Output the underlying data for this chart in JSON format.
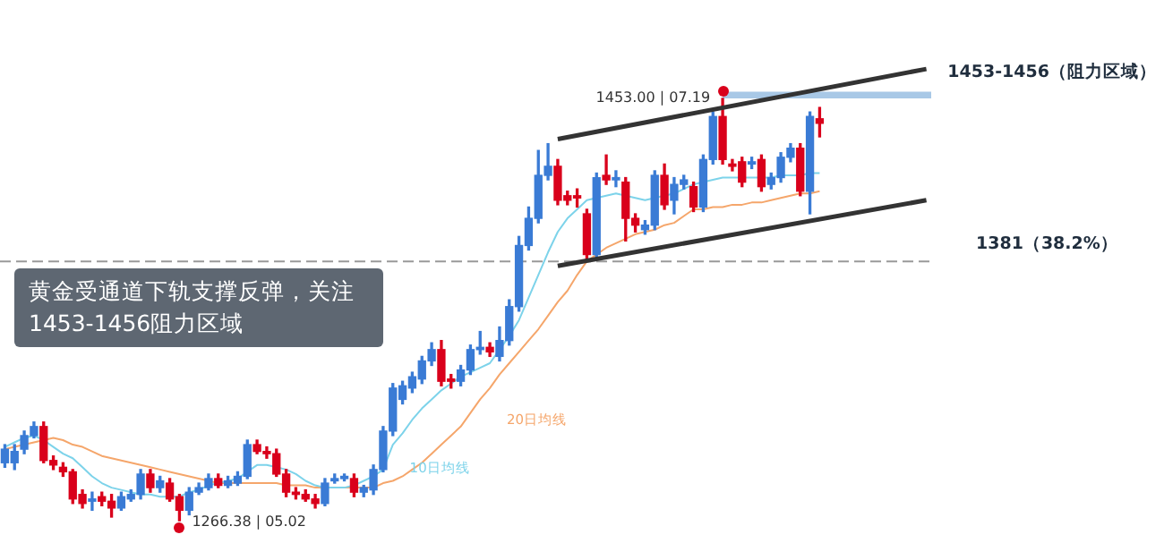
{
  "chart_data": {
    "type": "candlestick",
    "title": "黄金受通道下轨支撑反弹，关注1453-1456阻力区域",
    "categories": [
      null,
      null,
      null,
      null,
      null,
      null,
      null,
      null,
      null,
      null,
      null,
      null,
      null,
      null,
      null,
      null,
      null,
      null,
      null,
      null,
      null,
      null,
      null,
      null,
      null,
      null,
      null,
      null,
      null,
      null,
      null,
      null,
      null,
      null,
      null,
      null,
      null,
      null,
      null,
      null,
      null,
      null,
      null,
      null,
      null,
      null,
      null,
      null,
      null,
      null,
      null,
      null,
      null,
      null,
      null,
      null,
      null,
      null,
      null,
      null,
      null,
      null,
      null,
      null,
      null,
      null,
      null,
      null,
      null,
      null,
      null,
      null,
      null,
      null,
      null,
      null,
      null,
      null,
      null,
      null,
      null,
      null,
      null,
      null,
      null,
      null,
      null,
      null,
      null,
      null,
      null,
      null,
      null,
      null,
      null,
      null
    ],
    "ohlc": [
      [
        1292,
        1300,
        1290,
        1298
      ],
      [
        1292,
        1300,
        1289,
        1297
      ],
      [
        1298,
        1306,
        1296,
        1304
      ],
      [
        1304,
        1310,
        1303,
        1308
      ],
      [
        1308,
        1310,
        1292,
        1293
      ],
      [
        1293,
        1295,
        1289,
        1291
      ],
      [
        1290,
        1292,
        1286,
        1288
      ],
      [
        1288,
        1289,
        1274,
        1276
      ],
      [
        1278,
        1280,
        1272,
        1274
      ],
      [
        1275,
        1279,
        1271,
        1276
      ],
      [
        1277,
        1279,
        1273,
        1275
      ],
      [
        1275,
        1278,
        1268,
        1272
      ],
      [
        1272,
        1279,
        1271,
        1277
      ],
      [
        1276,
        1280,
        1275,
        1278
      ],
      [
        1278,
        1289,
        1276,
        1287
      ],
      [
        1287,
        1289,
        1279,
        1281
      ],
      [
        1281,
        1286,
        1279,
        1284
      ],
      [
        1283,
        1285,
        1275,
        1276
      ],
      [
        1277,
        1278,
        1266.38,
        1271
      ],
      [
        1271,
        1281,
        1269,
        1279
      ],
      [
        1279,
        1283,
        1278,
        1281
      ],
      [
        1281,
        1287,
        1280,
        1285
      ],
      [
        1285,
        1287,
        1281,
        1282
      ],
      [
        1282,
        1286,
        1281,
        1284
      ],
      [
        1283,
        1288,
        1282,
        1286
      ],
      [
        1286,
        1302,
        1285,
        1300
      ],
      [
        1300,
        1302,
        1296,
        1297
      ],
      [
        1297,
        1299,
        1294,
        1296
      ],
      [
        1296,
        1298,
        1286,
        1287
      ],
      [
        1287,
        1289,
        1277,
        1279
      ],
      [
        1279,
        1281,
        1276,
        1278
      ],
      [
        1278,
        1280,
        1275,
        1276
      ],
      [
        1276,
        1278,
        1272,
        1274
      ],
      [
        1274,
        1285,
        1273,
        1283
      ],
      [
        1284,
        1287,
        1283,
        1285
      ],
      [
        1285,
        1287,
        1284,
        1286
      ],
      [
        1285,
        1287,
        1277,
        1279
      ],
      [
        1279,
        1282,
        1277,
        1281
      ],
      [
        1280,
        1291,
        1278,
        1289
      ],
      [
        1289,
        1308,
        1288,
        1306
      ],
      [
        1306,
        1327,
        1304,
        1325
      ],
      [
        1320,
        1328,
        1318,
        1326
      ],
      [
        1325,
        1332,
        1323,
        1330
      ],
      [
        1329,
        1339,
        1327,
        1337
      ],
      [
        1337,
        1345,
        1335,
        1342
      ],
      [
        1342,
        1346,
        1326,
        1328
      ],
      [
        1329,
        1331,
        1325,
        1328
      ],
      [
        1328,
        1335,
        1326,
        1333
      ],
      [
        1333,
        1344,
        1331,
        1342
      ],
      [
        1342,
        1350,
        1340,
        1343
      ],
      [
        1343,
        1345,
        1339,
        1341
      ],
      [
        1339,
        1352,
        1337,
        1346
      ],
      [
        1346,
        1364,
        1344,
        1361
      ],
      [
        1361,
        1392,
        1359,
        1388
      ],
      [
        1388,
        1405,
        1386,
        1400
      ],
      [
        1400,
        1430,
        1398,
        1419
      ],
      [
        1419,
        1433,
        1417,
        1423
      ],
      [
        1423,
        1426,
        1406,
        1408
      ],
      [
        1410,
        1412,
        1406,
        1408
      ],
      [
        1410,
        1413,
        1405,
        1409
      ],
      [
        1402,
        1404,
        1382,
        1384
      ],
      [
        1384,
        1420,
        1382,
        1418
      ],
      [
        1419,
        1428,
        1415,
        1417
      ],
      [
        1417,
        1421,
        1414,
        1418
      ],
      [
        1416,
        1418,
        1390,
        1400
      ],
      [
        1400,
        1402,
        1394,
        1397
      ],
      [
        1395,
        1399,
        1393,
        1397
      ],
      [
        1397,
        1421,
        1395,
        1419
      ],
      [
        1419,
        1424,
        1404,
        1406
      ],
      [
        1408,
        1418,
        1402,
        1415
      ],
      [
        1415,
        1419,
        1413,
        1417
      ],
      [
        1414,
        1416,
        1403,
        1405
      ],
      [
        1405,
        1428,
        1403,
        1426
      ],
      [
        1426,
        1447,
        1424,
        1445
      ],
      [
        1445,
        1453.0,
        1424,
        1426
      ],
      [
        1424,
        1426,
        1421,
        1423
      ],
      [
        1425,
        1427,
        1414,
        1416
      ],
      [
        1424,
        1427,
        1422,
        1425
      ],
      [
        1426,
        1428,
        1412,
        1414
      ],
      [
        1415,
        1420,
        1413,
        1418
      ],
      [
        1418,
        1429,
        1416,
        1427
      ],
      [
        1427,
        1433,
        1425,
        1431
      ],
      [
        1431,
        1433,
        1410,
        1412
      ],
      [
        1412,
        1447,
        1402,
        1445
      ],
      [
        1444,
        1449,
        1436,
        1442
      ],
      null,
      null,
      null,
      null,
      null,
      null,
      null,
      null,
      null,
      null,
      null
    ],
    "colors": [
      "#3a7bd5",
      "#3a7bd5",
      "#3a7bd5",
      "#3a7bd5",
      "#d9001b",
      "#d9001b",
      "#d9001b",
      "#d9001b",
      "#d9001b",
      "#3a7bd5",
      "#d9001b",
      "#d9001b",
      "#3a7bd5",
      "#3a7bd5",
      "#3a7bd5",
      "#d9001b",
      "#3a7bd5",
      "#d9001b",
      "#d9001b",
      "#3a7bd5",
      "#3a7bd5",
      "#3a7bd5",
      "#d9001b",
      "#3a7bd5",
      "#3a7bd5",
      "#3a7bd5",
      "#d9001b",
      "#d9001b",
      "#d9001b",
      "#d9001b",
      "#d9001b",
      "#d9001b",
      "#d9001b",
      "#3a7bd5",
      "#3a7bd5",
      "#3a7bd5",
      "#d9001b",
      "#3a7bd5",
      "#3a7bd5",
      "#3a7bd5",
      "#3a7bd5",
      "#3a7bd5",
      "#3a7bd5",
      "#3a7bd5",
      "#3a7bd5",
      "#d9001b",
      "#d9001b",
      "#3a7bd5",
      "#3a7bd5",
      "#3a7bd5",
      "#d9001b",
      "#3a7bd5",
      "#3a7bd5",
      "#3a7bd5",
      "#3a7bd5",
      "#3a7bd5",
      "#3a7bd5",
      "#d9001b",
      "#d9001b",
      "#d9001b",
      "#d9001b",
      "#3a7bd5",
      "#d9001b",
      "#3a7bd5",
      "#d9001b",
      "#d9001b",
      "#3a7bd5",
      "#3a7bd5",
      "#d9001b",
      "#3a7bd5",
      "#3a7bd5",
      "#d9001b",
      "#3a7bd5",
      "#3a7bd5",
      "#d9001b",
      "#d9001b",
      "#d9001b",
      "#3a7bd5",
      "#d9001b",
      "#3a7bd5",
      "#3a7bd5",
      "#3a7bd5",
      "#d9001b",
      "#3a7bd5",
      "#d9001b",
      null,
      null,
      null,
      null,
      null,
      null,
      null,
      null,
      null,
      null,
      null
    ],
    "series": [
      {
        "name": "10日均线",
        "type": "line",
        "color": "#7dd3ea",
        "values": [
          1299,
          1301,
          1303,
          1304,
          1302,
          1299,
          1296,
          1294,
          1290,
          1286,
          1283,
          1281,
          1280,
          1279,
          1278,
          1278,
          1277,
          1277,
          1277,
          1279,
          1280,
          1282,
          1283,
          1284,
          1285,
          1288,
          1291,
          1291,
          1290,
          1289,
          1287,
          1284,
          1282,
          1281,
          1281,
          1281,
          1282,
          1284,
          1286,
          1289,
          1300,
          1305,
          1311,
          1316,
          1320,
          1324,
          1327,
          1330,
          1332,
          1334,
          1336,
          1342,
          1348,
          1355,
          1365,
          1375,
          1385,
          1394,
          1400,
          1404,
          1408,
          1409,
          1410,
          1411,
          1410,
          1409,
          1408,
          1409,
          1410,
          1411,
          1413,
          1415,
          1416,
          1417,
          1418,
          1418,
          1418,
          1418,
          1418,
          1418,
          1419,
          1419,
          1419,
          1420,
          1420,
          null,
          null,
          null,
          null,
          null,
          null,
          null,
          null,
          null,
          null,
          null
        ]
      },
      {
        "name": "20日均线",
        "type": "line",
        "color": "#f5a66b",
        "values": [
          1298,
          1299,
          1300,
          1301,
          1302,
          1303,
          1302,
          1300,
          1299,
          1297,
          1295,
          1294,
          1293,
          1292,
          1291,
          1290,
          1289,
          1288,
          1287,
          1286,
          1285,
          1284,
          1283,
          1283,
          1283,
          1283,
          1283,
          1283,
          1283,
          1282,
          1282,
          1282,
          1281,
          1281,
          1281,
          1281,
          1281,
          1281,
          1281,
          1283,
          1284,
          1286,
          1289,
          1292,
          1296,
          1300,
          1304,
          1308,
          1314,
          1320,
          1325,
          1331,
          1336,
          1341,
          1346,
          1351,
          1357,
          1363,
          1368,
          1375,
          1381,
          1384,
          1387,
          1389,
          1391,
          1393,
          1394,
          1395,
          1397,
          1398,
          1401,
          1404,
          1404,
          1405,
          1405,
          1406,
          1406,
          1407,
          1407,
          1408,
          1409,
          1410,
          1411,
          1411,
          1412,
          null,
          null,
          null,
          null,
          null,
          null,
          null,
          null,
          null,
          null,
          null
        ]
      },
      {
        "type": "line",
        "color": "#333333",
        "values": [
          null,
          null,
          null,
          null,
          null,
          null,
          null,
          null,
          null,
          null,
          null,
          null,
          null,
          null,
          null,
          null,
          null,
          null,
          null,
          null,
          null,
          null,
          null,
          null,
          null,
          null,
          null,
          null,
          null,
          null,
          null,
          null,
          null,
          null,
          null,
          null,
          null,
          null,
          null,
          null,
          null,
          null,
          null,
          null,
          null,
          null,
          null,
          null,
          null,
          null,
          null,
          null,
          null,
          null,
          null,
          null,
          null,
          1435,
          null,
          null,
          null,
          null,
          null,
          null,
          null,
          null,
          null,
          null,
          null,
          null,
          null,
          null,
          null,
          null,
          null,
          null,
          null,
          null,
          null,
          null,
          null,
          null,
          null,
          null,
          null,
          null,
          null,
          null,
          null,
          null,
          null,
          null,
          null,
          null,
          null,
          1466
        ]
      },
      {
        "type": "line",
        "color": "#333333",
        "values": [
          null,
          null,
          null,
          null,
          null,
          null,
          null,
          null,
          null,
          null,
          null,
          null,
          null,
          null,
          null,
          null,
          null,
          null,
          null,
          null,
          null,
          null,
          null,
          null,
          null,
          null,
          null,
          null,
          null,
          null,
          null,
          null,
          null,
          null,
          null,
          null,
          null,
          null,
          null,
          null,
          null,
          null,
          null,
          null,
          null,
          null,
          null,
          null,
          null,
          null,
          null,
          null,
          null,
          null,
          null,
          null,
          null,
          1379,
          null,
          null,
          null,
          null,
          null,
          null,
          null,
          null,
          null,
          null,
          null,
          null,
          null,
          null,
          null,
          null,
          null,
          null,
          null,
          null,
          null,
          null,
          null,
          null,
          null,
          null,
          null,
          null,
          null,
          null,
          null,
          null,
          null,
          null,
          null,
          null,
          null,
          1408
        ]
      }
    ],
    "bands": [
      {
        "axis": "y",
        "from": 1453,
        "to": 1456,
        "label": "1453-1456（阻力区域）",
        "color": "#a8c8e6"
      }
    ],
    "ref_lines": [
      {
        "axis": "y",
        "value": 1381,
        "label": "1381（38.2%）",
        "color": "#999999",
        "line_style": "dashed"
      }
    ],
    "annotations": [
      "1453.00 | 07.19",
      "1266.38 | 05.02"
    ]
  }
}
